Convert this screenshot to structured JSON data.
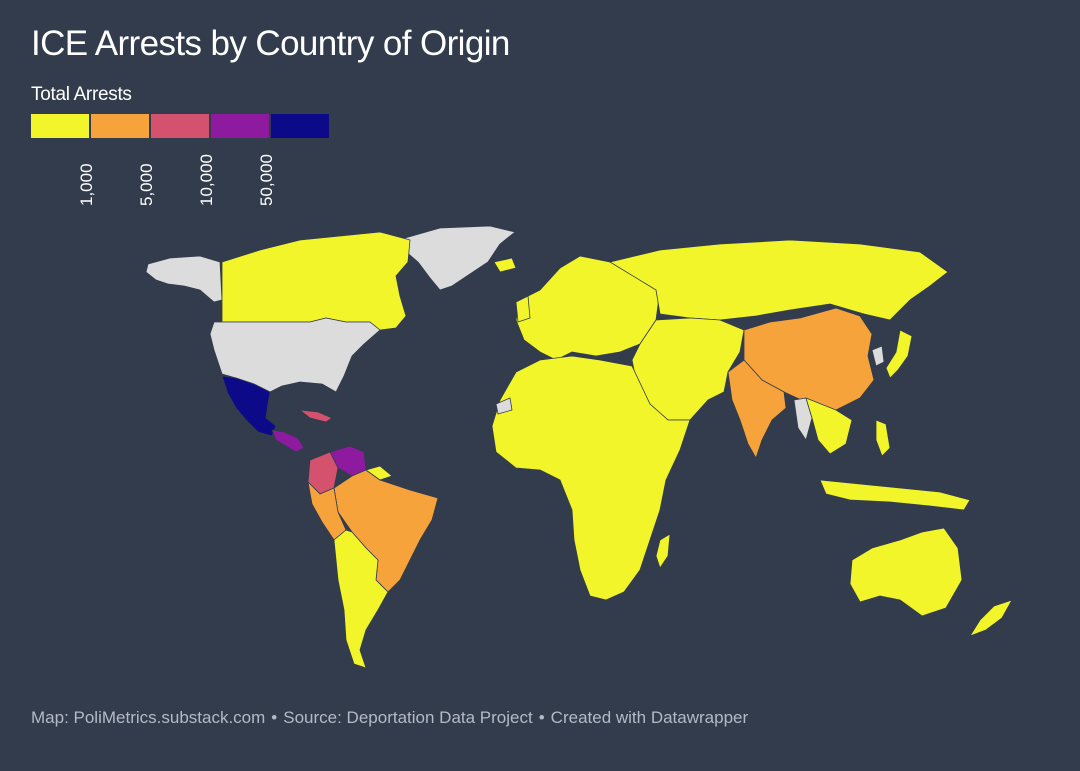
{
  "title": "ICE Arrests by Country of Origin",
  "legend": {
    "title": "Total Arrests",
    "colors": [
      "#f2f529",
      "#f7a33b",
      "#d4526d",
      "#8e1aa0",
      "#0d0a89"
    ],
    "ticks": [
      "1,000",
      "5,000",
      "10,000",
      "50,000"
    ]
  },
  "map_colors": {
    "background": "#323c4c",
    "no_data": "#dcdcdc",
    "border": "#323c4c"
  },
  "footer": {
    "map": "Map: PoliMetrics.substack.com",
    "source": "Source: Deportation Data Project",
    "tool": "Created with Datawrapper",
    "separator": "•"
  }
}
